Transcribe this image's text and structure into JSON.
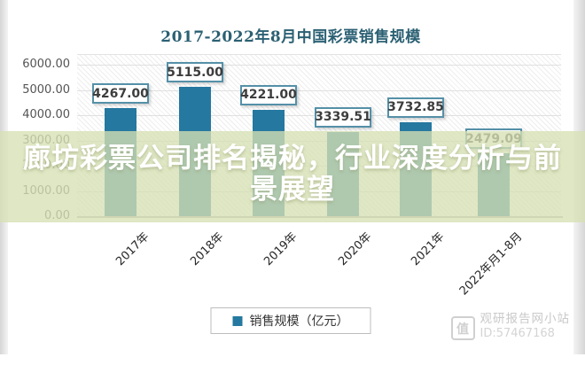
{
  "chart": {
    "colors": {
      "bar": "#25789f",
      "title": "#2b6073",
      "value_box_border": "#5590a8",
      "overlay_band": "rgba(214,224,180,0.78)"
    }
  },
  "chart_data": {
    "type": "bar",
    "title": "2017-2022年8月中国彩票销售规模",
    "categories": [
      "2017年",
      "2018年",
      "2019年",
      "2020年",
      "2021年",
      "2022年月1-8月"
    ],
    "values": [
      4267.0,
      5115.0,
      4221.0,
      3339.51,
      3732.85,
      2479.09
    ],
    "value_labels": [
      "4267.00",
      "5115.00",
      "4221.00",
      "3339.51",
      "3732.85",
      "2479.09"
    ],
    "yticks": [
      "6000.00",
      "5000.00",
      "4000.00",
      "3000.00",
      "2000.00",
      "1000.00",
      "0.00"
    ],
    "ylim": [
      0,
      6000
    ],
    "ytick_step": 1000,
    "xlabel": "",
    "ylabel": "",
    "grid": true,
    "legend_entries": [
      "销售规模（亿元）"
    ],
    "legend_position": "bottom"
  },
  "overlay": {
    "line1": "廊坊彩票公司排名揭秘，行业深度分析与前",
    "line2": "景展望"
  },
  "watermark": {
    "site": "观研报告网小站",
    "id": "ID:57467168",
    "logo_char": "值"
  }
}
